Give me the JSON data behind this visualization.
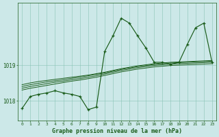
{
  "hours": [
    0,
    1,
    2,
    3,
    4,
    5,
    6,
    7,
    8,
    9,
    10,
    11,
    12,
    13,
    14,
    15,
    16,
    17,
    18,
    19,
    20,
    21,
    22,
    23
  ],
  "noisy_line": [
    1017.78,
    1018.12,
    1018.18,
    1018.22,
    1018.28,
    1018.22,
    1018.18,
    1018.12,
    1017.75,
    1017.82,
    1019.38,
    1019.82,
    1020.32,
    1020.18,
    1019.82,
    1019.48,
    1019.08,
    1019.08,
    1019.02,
    1019.08,
    1019.58,
    1020.05,
    1020.18,
    1019.08
  ],
  "smooth_line1": [
    1018.45,
    1018.5,
    1018.54,
    1018.57,
    1018.6,
    1018.63,
    1018.66,
    1018.69,
    1018.72,
    1018.76,
    1018.8,
    1018.85,
    1018.9,
    1018.94,
    1018.98,
    1019.01,
    1019.04,
    1019.06,
    1019.08,
    1019.09,
    1019.1,
    1019.11,
    1019.12,
    1019.13
  ],
  "smooth_line2": [
    1018.4,
    1018.45,
    1018.49,
    1018.53,
    1018.56,
    1018.59,
    1018.63,
    1018.66,
    1018.7,
    1018.74,
    1018.78,
    1018.83,
    1018.88,
    1018.92,
    1018.96,
    1018.99,
    1019.02,
    1019.04,
    1019.06,
    1019.07,
    1019.08,
    1019.09,
    1019.1,
    1019.11
  ],
  "smooth_line3": [
    1018.35,
    1018.4,
    1018.44,
    1018.48,
    1018.52,
    1018.55,
    1018.59,
    1018.62,
    1018.66,
    1018.7,
    1018.75,
    1018.8,
    1018.85,
    1018.89,
    1018.93,
    1018.96,
    1018.99,
    1019.01,
    1019.03,
    1019.04,
    1019.05,
    1019.06,
    1019.07,
    1019.08
  ],
  "smooth_line4": [
    1018.3,
    1018.35,
    1018.39,
    1018.43,
    1018.47,
    1018.51,
    1018.55,
    1018.58,
    1018.62,
    1018.66,
    1018.71,
    1018.76,
    1018.81,
    1018.85,
    1018.89,
    1018.92,
    1018.95,
    1018.97,
    1018.99,
    1019.0,
    1019.01,
    1019.02,
    1019.03,
    1019.04
  ],
  "bg_color": "#cce8e8",
  "line_color": "#1a5c1a",
  "grid_color": "#88c4b4",
  "title": "Graphe pression niveau de la mer (hPa)",
  "ylim_min": 1017.45,
  "ylim_max": 1020.75,
  "yticks": [
    1018,
    1019
  ],
  "figwidth": 3.2,
  "figheight": 2.0,
  "dpi": 100
}
